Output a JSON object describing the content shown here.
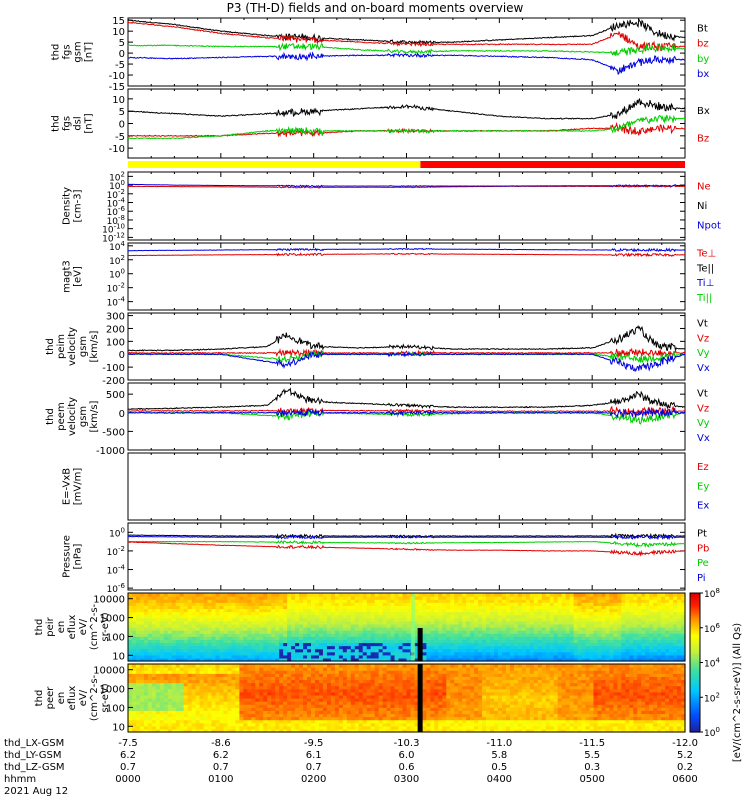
{
  "title": "P3 (TH-D) fields and on-board moments overview",
  "colors": {
    "black": "#000000",
    "red": "#e00000",
    "green": "#00cc00",
    "blue": "#0000e0",
    "yellow": "#ffff00",
    "bar_red": "#ff0000"
  },
  "chart_data": [
    {
      "id": "fgs-gsm",
      "type": "line",
      "ylabel": [
        "thd",
        "fgs",
        "gsm",
        "[nT]"
      ],
      "yticks": [
        -15,
        -10,
        -5,
        0,
        5,
        10,
        15
      ],
      "ylim": [
        -15,
        16
      ],
      "legend": [
        {
          "label": "Bt",
          "color": "black"
        },
        {
          "label": "bz",
          "color": "red"
        },
        {
          "label": "by",
          "color": "green"
        },
        {
          "label": "bx",
          "color": "blue"
        }
      ],
      "series": [
        {
          "name": "Bt",
          "color": "black",
          "x": [
            0,
            0.5,
            1,
            1.5,
            2,
            2.5,
            3,
            3.5,
            4,
            4.5,
            5,
            5.3,
            5.5,
            5.7,
            6
          ],
          "y": [
            15,
            13,
            10,
            8,
            7,
            6,
            5,
            5,
            6,
            7,
            8,
            13,
            14,
            9,
            7
          ]
        },
        {
          "name": "bz",
          "color": "red",
          "x": [
            0,
            0.5,
            1,
            1.5,
            2,
            2.5,
            3,
            3.5,
            4,
            4.5,
            5,
            5.3,
            5.5,
            5.7,
            6
          ],
          "y": [
            14,
            12,
            9,
            7,
            6,
            5,
            4,
            4,
            4,
            4,
            4,
            9,
            3,
            3,
            3
          ]
        },
        {
          "name": "by",
          "color": "green",
          "x": [
            0,
            0.5,
            1,
            1.5,
            2,
            2.5,
            3,
            3.5,
            4,
            4.5,
            5,
            5.3,
            5.5,
            5.7,
            6
          ],
          "y": [
            3.5,
            3.5,
            3,
            3,
            3,
            1.5,
            0.5,
            1,
            1,
            1,
            0.5,
            0,
            2,
            2.5,
            2
          ]
        },
        {
          "name": "bx",
          "color": "blue",
          "x": [
            0,
            0.5,
            1,
            1.5,
            2,
            2.5,
            3,
            3.5,
            4,
            4.5,
            5,
            5.3,
            5.5,
            5.7,
            6
          ],
          "y": [
            -2,
            -2.5,
            -2,
            -1.5,
            -1.5,
            -1,
            -1,
            -1,
            -1.5,
            -2,
            -3,
            -8,
            -4,
            -3,
            -3
          ]
        }
      ]
    },
    {
      "id": "fgs-dsl",
      "type": "line",
      "ylabel": [
        "thd",
        "fgs",
        "dsl",
        "[nT]"
      ],
      "yticks": [
        -10,
        -5,
        0,
        5,
        10
      ],
      "ylim": [
        -14,
        14
      ],
      "legend": [
        {
          "label": "Bx",
          "color": "black"
        },
        {
          "label": "Bz",
          "color": "red"
        }
      ],
      "series": [
        {
          "name": "Bx",
          "color": "black",
          "x": [
            0,
            0.5,
            1,
            1.5,
            2,
            2.5,
            3,
            3.5,
            4,
            4.5,
            5,
            5.3,
            5.5,
            5.7,
            6
          ],
          "y": [
            5,
            4,
            3,
            4,
            5,
            6,
            7,
            5,
            3,
            2,
            2,
            4,
            9,
            7,
            6
          ]
        },
        {
          "name": "Bz",
          "color": "red",
          "x": [
            0,
            0.5,
            1,
            1.5,
            2,
            2.5,
            3,
            3.5,
            4,
            4.5,
            5,
            5.3,
            5.5,
            5.7,
            6
          ],
          "y": [
            -5,
            -5,
            -5,
            -4,
            -4,
            -3,
            -3,
            -3,
            -3,
            -3,
            -2,
            -2,
            -3,
            -2,
            -2
          ]
        },
        {
          "name": "By",
          "color": "green",
          "x": [
            0,
            0.5,
            1,
            1.5,
            2,
            2.5,
            3,
            3.5,
            4,
            4.5,
            5,
            5.3,
            5.5,
            5.7,
            6
          ],
          "y": [
            -6,
            -6,
            -5,
            -3,
            -3,
            -3,
            -3,
            -3,
            -3,
            -3,
            -3,
            -2,
            1,
            2,
            2
          ]
        }
      ]
    },
    {
      "id": "mode-bar",
      "type": "bar",
      "segments": [
        {
          "from": 0,
          "to": 3.15,
          "color": "yellow"
        },
        {
          "from": 3.15,
          "to": 6,
          "color": "bar_red"
        }
      ]
    },
    {
      "id": "density",
      "type": "line",
      "scale": "log",
      "ylabel": [
        "Density",
        "[cm-3]"
      ],
      "yticks": [
        {
          "exp": 2
        },
        {
          "exp": 0
        },
        {
          "exp": -2
        },
        {
          "exp": -4
        },
        {
          "exp": -6
        },
        {
          "exp": -8
        },
        {
          "exp": -10
        },
        {
          "exp": -12
        }
      ],
      "ylim_exp": [
        -12.6,
        3
      ],
      "legend": [
        {
          "label": "Ne",
          "color": "red"
        },
        {
          "label": "Ni",
          "color": "black"
        },
        {
          "label": "Npot",
          "color": "blue"
        }
      ],
      "series": [
        {
          "name": "Ne",
          "color": "red",
          "x": [
            0,
            1,
            2,
            3,
            4,
            5,
            6
          ],
          "y": [
            0.5,
            0.4,
            0.3,
            0.3,
            0.5,
            0.5,
            0.5
          ]
        },
        {
          "name": "Npot",
          "color": "blue",
          "x": [
            0,
            0.2,
            0.5,
            1,
            2,
            3,
            4,
            5,
            6
          ],
          "y": [
            1.5,
            1.2,
            1,
            0.8,
            0.6,
            0.6,
            0.6,
            0.7,
            0.8
          ]
        }
      ]
    },
    {
      "id": "temperature",
      "type": "line",
      "scale": "log",
      "ylabel": [
        "magt3",
        "[eV]"
      ],
      "yticks": [
        {
          "exp": 4
        },
        {
          "exp": 2
        },
        {
          "exp": 0
        },
        {
          "exp": -2
        },
        {
          "exp": -4
        }
      ],
      "ylim_exp": [
        -5.2,
        4.4
      ],
      "legend": [
        {
          "label": "Te⊥",
          "color": "red"
        },
        {
          "label": "Te||",
          "color": "black"
        },
        {
          "label": "Ti⊥",
          "color": "blue"
        },
        {
          "label": "Ti||",
          "color": "green"
        }
      ],
      "series": [
        {
          "name": "Ti",
          "color": "blue",
          "x": [
            0,
            1,
            2,
            3,
            4,
            5,
            6
          ],
          "y": [
            2000,
            2500,
            3000,
            3500,
            3000,
            2500,
            2500
          ]
        },
        {
          "name": "Te",
          "color": "red",
          "x": [
            0,
            1,
            2,
            3,
            4,
            5,
            6
          ],
          "y": [
            400,
            500,
            600,
            700,
            600,
            500,
            500
          ]
        }
      ]
    },
    {
      "id": "peim-velocity",
      "type": "line",
      "ylabel": [
        "thd",
        "peim",
        "velocity",
        "gsm",
        "[km/s]"
      ],
      "yticks": [
        -200,
        -100,
        0,
        100,
        200,
        300
      ],
      "ylim": [
        -200,
        320
      ],
      "legend": [
        {
          "label": "Vt",
          "color": "black"
        },
        {
          "label": "Vz",
          "color": "red"
        },
        {
          "label": "Vy",
          "color": "green"
        },
        {
          "label": "Vx",
          "color": "blue"
        }
      ],
      "series": [
        {
          "name": "Vt",
          "color": "black",
          "x": [
            0,
            0.5,
            1,
            1.5,
            1.7,
            2,
            2.5,
            3,
            3.5,
            4,
            4.5,
            5,
            5.3,
            5.5,
            5.7,
            6
          ],
          "y": [
            30,
            30,
            40,
            60,
            150,
            60,
            50,
            60,
            40,
            40,
            40,
            50,
            120,
            200,
            60,
            40
          ]
        },
        {
          "name": "Vz",
          "color": "red",
          "x": [
            0,
            1,
            2,
            3,
            4,
            5,
            6
          ],
          "y": [
            10,
            10,
            10,
            10,
            10,
            10,
            10
          ]
        },
        {
          "name": "Vy",
          "color": "green",
          "x": [
            0,
            1,
            1.7,
            2,
            3,
            4,
            5,
            5.5,
            6
          ],
          "y": [
            0,
            0,
            -40,
            0,
            0,
            0,
            0,
            -40,
            0
          ]
        },
        {
          "name": "Vx",
          "color": "blue",
          "x": [
            0,
            1,
            1.7,
            2,
            3,
            4,
            5,
            5.5,
            6
          ],
          "y": [
            0,
            0,
            -80,
            0,
            0,
            0,
            0,
            -120,
            0
          ]
        }
      ]
    },
    {
      "id": "peem-velocity",
      "type": "line",
      "ylabel": [
        "thd",
        "peem",
        "velocity",
        "gsm",
        "[km/s]"
      ],
      "yticks": [
        -1000,
        -500,
        0,
        500
      ],
      "ylim": [
        -1000,
        800
      ],
      "legend": [
        {
          "label": "Vt",
          "color": "black"
        },
        {
          "label": "Vz",
          "color": "red"
        },
        {
          "label": "Vy",
          "color": "green"
        },
        {
          "label": "Vx",
          "color": "blue"
        }
      ],
      "series": [
        {
          "name": "Vt",
          "color": "black",
          "x": [
            0,
            0.5,
            1,
            1.5,
            1.7,
            2,
            2.5,
            3,
            3.5,
            4,
            4.5,
            5,
            5.3,
            5.5,
            5.7,
            6
          ],
          "y": [
            100,
            120,
            150,
            200,
            600,
            300,
            250,
            200,
            150,
            150,
            150,
            200,
            300,
            500,
            250,
            150
          ]
        },
        {
          "name": "Vz",
          "color": "red",
          "x": [
            0,
            1,
            2,
            3,
            4,
            5,
            6
          ],
          "y": [
            50,
            50,
            60,
            50,
            40,
            40,
            40
          ]
        },
        {
          "name": "Vy",
          "color": "green",
          "x": [
            0,
            1,
            1.7,
            2,
            3,
            4,
            5,
            5.5,
            6
          ],
          "y": [
            0,
            0,
            -100,
            0,
            -50,
            0,
            0,
            -200,
            0
          ]
        },
        {
          "name": "Vx",
          "color": "blue",
          "x": [
            0,
            1,
            2,
            3,
            4,
            5,
            6
          ],
          "y": [
            0,
            0,
            0,
            0,
            0,
            0,
            0
          ]
        }
      ]
    },
    {
      "id": "efield",
      "type": "line",
      "ylabel": [
        "E=-VxB",
        "[mV/m]"
      ],
      "yticks": [],
      "legend": [
        {
          "label": "Ez",
          "color": "red"
        },
        {
          "label": "Ey",
          "color": "green"
        },
        {
          "label": "Ex",
          "color": "blue"
        }
      ],
      "series": []
    },
    {
      "id": "pressure",
      "type": "line",
      "scale": "log",
      "ylabel": [
        "Pressure",
        "[nPa]"
      ],
      "yticks": [
        {
          "exp": 0
        },
        {
          "exp": -2
        },
        {
          "exp": -4
        },
        {
          "exp": -6
        }
      ],
      "ylim_exp": [
        -6.2,
        1
      ],
      "legend": [
        {
          "label": "Pt",
          "color": "black"
        },
        {
          "label": "Pb",
          "color": "red"
        },
        {
          "label": "Pe",
          "color": "green"
        },
        {
          "label": "Pi",
          "color": "blue"
        }
      ],
      "series": [
        {
          "name": "Pt",
          "color": "black",
          "x": [
            0,
            1,
            2,
            3,
            4,
            5,
            6
          ],
          "y": [
            0.5,
            0.4,
            0.4,
            0.4,
            0.4,
            0.4,
            0.4
          ]
        },
        {
          "name": "Pi",
          "color": "blue",
          "x": [
            0,
            1,
            2,
            3,
            4,
            5,
            6
          ],
          "y": [
            0.35,
            0.3,
            0.3,
            0.3,
            0.3,
            0.3,
            0.3
          ]
        },
        {
          "name": "Pe",
          "color": "green",
          "x": [
            0,
            1,
            2,
            3,
            4,
            5,
            5.5,
            6
          ],
          "y": [
            0.1,
            0.1,
            0.08,
            0.07,
            0.08,
            0.1,
            0.04,
            0.06
          ]
        },
        {
          "name": "Pb",
          "color": "red",
          "x": [
            0,
            0.5,
            1,
            1.5,
            2,
            2.5,
            3,
            3.5,
            4,
            4.5,
            5,
            5.5,
            6
          ],
          "y": [
            0.09,
            0.06,
            0.04,
            0.03,
            0.025,
            0.02,
            0.015,
            0.012,
            0.012,
            0.01,
            0.01,
            0.005,
            0.01
          ]
        }
      ]
    },
    {
      "id": "peir-spec",
      "type": "heatmap",
      "ylabel": [
        "thd",
        "peir",
        "en",
        "eflux",
        "eV/",
        "(cm^2-s-",
        "sr-eV)"
      ],
      "yticks": [
        {
          "label": "10"
        },
        {
          "label": "100"
        },
        {
          "label": "1000"
        },
        {
          "label": "10000"
        }
      ],
      "colorbar": {
        "ticks": [
          "10^0",
          "10^2",
          "10^4",
          "10^6",
          "10^8"
        ],
        "label": "[eV/(cm^2-s-sr-eV)] (All Qs)"
      }
    },
    {
      "id": "peer-spec",
      "type": "heatmap",
      "ylabel": [
        "thd",
        "peer",
        "en",
        "eflux",
        "eV/",
        "(cm^2-s-",
        "sr-eV)"
      ],
      "yticks": [
        {
          "label": "10"
        },
        {
          "label": "100"
        },
        {
          "label": "1000"
        },
        {
          "label": "10000"
        }
      ]
    }
  ],
  "xaxis": {
    "tick_pos": [
      0,
      1,
      2,
      3,
      4,
      5,
      6
    ],
    "rows": [
      {
        "name": "thd_LX-GSM",
        "values": [
          "-7.5",
          "-8.6",
          "-9.5",
          "-10.3",
          "-11.0",
          "-11.5",
          "-12.0"
        ]
      },
      {
        "name": "thd_LY-GSM",
        "values": [
          "6.2",
          "6.2",
          "6.1",
          "6.0",
          "5.8",
          "5.5",
          "5.2"
        ]
      },
      {
        "name": "thd_LZ-GSM",
        "values": [
          "0.7",
          "0.7",
          "0.7",
          "0.6",
          "0.5",
          "0.3",
          "0.2"
        ]
      },
      {
        "name": "hhmm",
        "values": [
          "0000",
          "0100",
          "0200",
          "0300",
          "0400",
          "0500",
          "0600"
        ]
      }
    ],
    "date": "2021 Aug 12"
  }
}
